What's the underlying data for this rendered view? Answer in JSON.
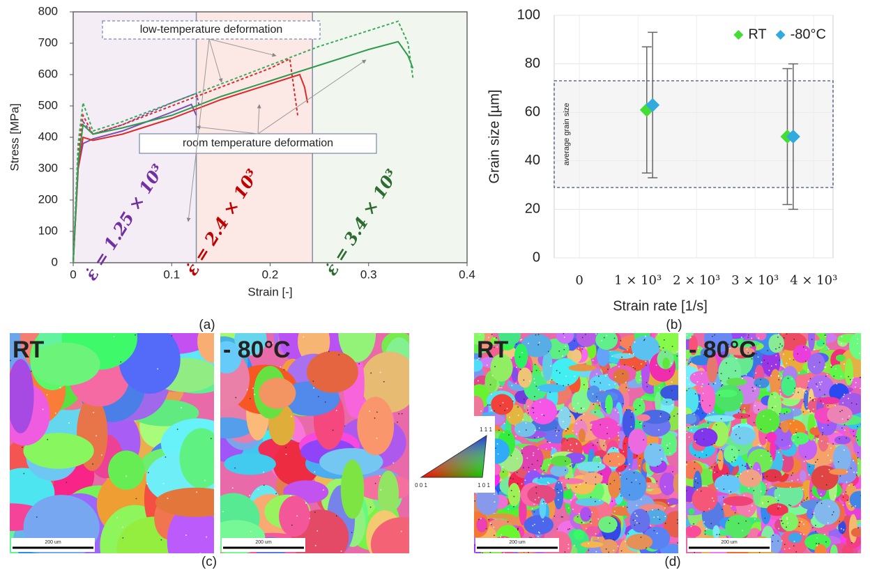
{
  "chart_data": [
    {
      "type": "line",
      "xlabel": "Strain [-]",
      "ylabel": "Stress [MPa]",
      "xlim": [
        0,
        0.4
      ],
      "xticks": [
        0,
        0.1,
        0.2,
        0.3,
        0.4
      ],
      "ylim": [
        0,
        800
      ],
      "yticks": [
        0,
        100,
        200,
        300,
        400,
        500,
        600,
        700,
        800
      ],
      "regions": [
        {
          "label": "ε̇ = 1.25 × 10³",
          "xlim": [
            0,
            0.125
          ],
          "color": "#f5edf5",
          "text_color": "#7030a0"
        },
        {
          "label": "ε̇ = 2.4 × 10³",
          "xlim": [
            0.125,
            0.243
          ],
          "color": "#fce8e5",
          "text_color": "#c00000"
        },
        {
          "label": "ε̇ = 3.4 × 10³",
          "xlim": [
            0.243,
            0.4
          ],
          "color": "#f1f7ee",
          "text_color": "#2e6b30"
        }
      ],
      "annotations": [
        "low-temperature deformation",
        "room temperature deformation"
      ],
      "series": [
        {
          "color": "#7a4fb0",
          "dashed": false,
          "x": [
            0,
            0.005,
            0.01,
            0.02,
            0.05,
            0.1,
            0.12,
            0.125
          ],
          "values": [
            0,
            300,
            380,
            395,
            420,
            480,
            505,
            470
          ]
        },
        {
          "color": "#7a4fb0",
          "dashed": true,
          "x": [
            0,
            0.005,
            0.01,
            0.02,
            0.05,
            0.1,
            0.125,
            0.128
          ],
          "values": [
            0,
            350,
            450,
            410,
            440,
            510,
            540,
            500
          ]
        },
        {
          "color": "#dd2a2a",
          "dashed": false,
          "x": [
            0,
            0.005,
            0.01,
            0.02,
            0.05,
            0.1,
            0.15,
            0.2,
            0.23,
            0.235,
            0.238
          ],
          "values": [
            0,
            300,
            400,
            390,
            410,
            460,
            520,
            570,
            600,
            560,
            510
          ]
        },
        {
          "color": "#dd2a2a",
          "dashed": true,
          "x": [
            0,
            0.005,
            0.01,
            0.02,
            0.05,
            0.1,
            0.15,
            0.2,
            0.22,
            0.228
          ],
          "values": [
            0,
            350,
            470,
            410,
            440,
            500,
            560,
            620,
            650,
            470
          ]
        },
        {
          "color": "#2e9a4e",
          "dashed": false,
          "x": [
            0,
            0.005,
            0.01,
            0.02,
            0.05,
            0.1,
            0.15,
            0.2,
            0.25,
            0.3,
            0.33,
            0.34,
            0.345
          ],
          "values": [
            0,
            320,
            440,
            410,
            430,
            470,
            530,
            580,
            630,
            680,
            705,
            660,
            620
          ]
        },
        {
          "color": "#3aaa5a",
          "dashed": true,
          "x": [
            0,
            0.005,
            0.01,
            0.02,
            0.05,
            0.1,
            0.15,
            0.2,
            0.25,
            0.3,
            0.33,
            0.34,
            0.345
          ],
          "values": [
            0,
            380,
            510,
            420,
            450,
            510,
            570,
            630,
            690,
            740,
            770,
            700,
            590
          ]
        }
      ]
    },
    {
      "type": "scatter",
      "xlabel": "Strain rate [1/s]",
      "ylabel": "Grain size [µm]",
      "xlim": [
        -430,
        4330
      ],
      "xticks": [
        0,
        {
          "value": 1000,
          "label": "1 × 10³"
        },
        {
          "value": 2000,
          "label": "2 × 10³"
        },
        {
          "value": 3000,
          "label": "3 × 10³"
        },
        {
          "value": 4000,
          "label": "4 × 10³"
        }
      ],
      "ylim": [
        0,
        100
      ],
      "yticks": [
        0,
        20,
        40,
        60,
        80,
        100
      ],
      "grid": true,
      "legend": "upper right",
      "band": {
        "label": "average grain size",
        "ylim": [
          29,
          73
        ]
      },
      "series": [
        {
          "name": "RT",
          "color": "#44dd33",
          "x": [
            1150,
            3550
          ],
          "values": [
            61,
            50
          ],
          "errors": [
            26,
            28
          ]
        },
        {
          "name": "-80°C",
          "color": "#33aadd",
          "x": [
            1250,
            3650
          ],
          "values": [
            63,
            50
          ],
          "errors": [
            30,
            30
          ]
        }
      ]
    }
  ],
  "figure": {
    "panel_labels": [
      "(a)",
      "(b)",
      "(c)",
      "(d)"
    ],
    "micrographs": [
      {
        "label": "RT",
        "scale_bar": "200 um"
      },
      {
        "label": "- 80°C",
        "scale_bar": "200 um"
      },
      {
        "label": "RT",
        "scale_bar": "200 um"
      },
      {
        "label": "- 80°C",
        "scale_bar": "200 um"
      }
    ],
    "ipf_key": {
      "corners": [
        "0 0 1",
        "1 0 1",
        "1 1 1"
      ]
    }
  }
}
